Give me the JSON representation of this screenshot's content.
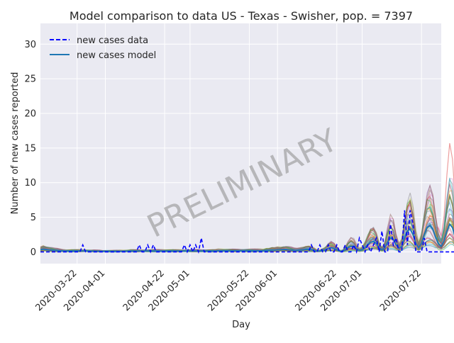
{
  "chart_data": {
    "type": "line",
    "title": "Model comparison to data US - Texas - Swisher, pop. = 7397",
    "xlabel": "Day",
    "ylabel": "Number of new cases reported",
    "xlim": [
      "2020-03-09",
      "2020-07-29"
    ],
    "ylim": [
      -1.7,
      33
    ],
    "x_ticks": [
      "2020-03-22",
      "2020-04-01",
      "2020-04-22",
      "2020-05-01",
      "2020-05-22",
      "2020-06-01",
      "2020-06-22",
      "2020-07-01",
      "2020-07-22"
    ],
    "y_ticks": [
      0,
      5,
      10,
      15,
      20,
      25,
      30
    ],
    "grid": true,
    "legend": {
      "position": "upper-left",
      "entries": [
        {
          "label": "new cases data",
          "style": "dashed",
          "color": "#0000ff"
        },
        {
          "label": "new cases model",
          "style": "solid",
          "color": "#1f77b4"
        }
      ]
    },
    "watermark": "PRELIMINARY",
    "colors": {
      "data": "#0000ff",
      "model": "#1f77b4",
      "ensemble": [
        "#1f77b4",
        "#ff7f0e",
        "#2ca02c",
        "#d62728",
        "#9467bd",
        "#8c564b",
        "#e377c2",
        "#7f7f7f",
        "#bcbd22",
        "#17becf"
      ],
      "grid": "#ffffff",
      "background": "#eaeaf2"
    },
    "series": [
      {
        "name": "new cases data",
        "start": "2020-03-09",
        "values": [
          0,
          0,
          0,
          0,
          0,
          0,
          0,
          0,
          0,
          0,
          0,
          0,
          0,
          0,
          0,
          1,
          0,
          0,
          0,
          0,
          0,
          0,
          0,
          0,
          0,
          0,
          0,
          0,
          0,
          0,
          0,
          0,
          0,
          0,
          0,
          1,
          0,
          0,
          1,
          0,
          1,
          0,
          0,
          0,
          0,
          0,
          0,
          0,
          0,
          0,
          0,
          1,
          0,
          1,
          0,
          1,
          0,
          2,
          0,
          0,
          0,
          0,
          0,
          0,
          0,
          0,
          0,
          0,
          0,
          0,
          0,
          0,
          0,
          0,
          0,
          0,
          0,
          0,
          0,
          0,
          0,
          0,
          0,
          0,
          0,
          0,
          0,
          0,
          0,
          0,
          0,
          0,
          0,
          0,
          0,
          0,
          1,
          0,
          0,
          1,
          0,
          0,
          1,
          0,
          0,
          1,
          0,
          0,
          1,
          0,
          0,
          1,
          0,
          2,
          1,
          0,
          1,
          0,
          1,
          2,
          0,
          3,
          0,
          0,
          4,
          1,
          2,
          0,
          0,
          6,
          1,
          6,
          4,
          0,
          0,
          0,
          2,
          0,
          0,
          0,
          0,
          0,
          0,
          0,
          0,
          0,
          0,
          0,
          0
        ]
      },
      {
        "name": "new cases model",
        "start": "2020-03-09",
        "values": [
          0.3,
          0.4,
          0.35,
          0.3,
          0.25,
          0.2,
          0.18,
          0.15,
          0.13,
          0.12,
          0.12,
          0.12,
          0.12,
          0.12,
          0.12,
          0.12,
          0.12,
          0.11,
          0.1,
          0.1,
          0.09,
          0.09,
          0.08,
          0.08,
          0.08,
          0.08,
          0.08,
          0.08,
          0.08,
          0.08,
          0.09,
          0.1,
          0.12,
          0.12,
          0.12,
          0.12,
          0.12,
          0.12,
          0.12,
          0.12,
          0.12,
          0.12,
          0.12,
          0.12,
          0.12,
          0.12,
          0.12,
          0.12,
          0.12,
          0.12,
          0.12,
          0.12,
          0.12,
          0.12,
          0.12,
          0.12,
          0.12,
          0.12,
          0.12,
          0.12,
          0.12,
          0.12,
          0.12,
          0.15,
          0.15,
          0.15,
          0.15,
          0.15,
          0.15,
          0.15,
          0.15,
          0.15,
          0.15,
          0.15,
          0.15,
          0.15,
          0.15,
          0.15,
          0.15,
          0.15,
          0.2,
          0.2,
          0.25,
          0.25,
          0.3,
          0.3,
          0.35,
          0.35,
          0.3,
          0.25,
          0.2,
          0.2,
          0.25,
          0.3,
          0.35,
          0.35,
          0.3,
          0.2,
          0.1,
          0.1,
          0.2,
          0.3,
          0.5,
          0.6,
          0.5,
          0.3,
          0.1,
          0.1,
          0.3,
          0.6,
          0.8,
          0.7,
          0.4,
          0.2,
          0.3,
          0.6,
          1.0,
          1.4,
          1.5,
          1.2,
          0.6,
          0.3,
          0.6,
          1.4,
          2.0,
          1.8,
          1.0,
          0.5,
          0.8,
          2.0,
          3.0,
          3.3,
          2.5,
          1.2,
          0.6,
          1.2,
          2.5,
          3.5,
          3.8,
          3.3,
          2.2,
          1.2,
          0.8,
          1.6,
          3.0,
          4.0,
          3.5,
          2.0,
          0.5,
          0.2,
          0.2
        ]
      }
    ]
  }
}
